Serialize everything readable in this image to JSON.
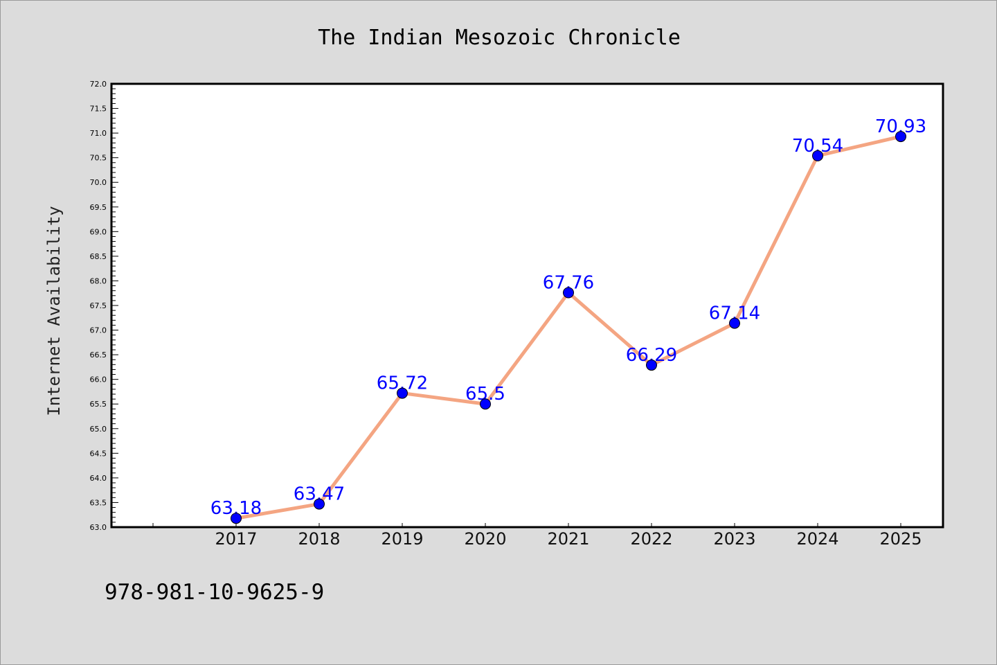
{
  "chart_data": {
    "type": "line",
    "title": "The Indian Mesozoic Chronicle",
    "xlabel": "",
    "ylabel": "Internet Availability",
    "categories": [
      "2017",
      "2018",
      "2019",
      "2020",
      "2021",
      "2022",
      "2023",
      "2024",
      "2025"
    ],
    "values": [
      63.18,
      63.47,
      65.72,
      65.5,
      67.76,
      66.29,
      67.14,
      70.54,
      70.93
    ],
    "value_labels": [
      "63.18",
      "63.47",
      "65.72",
      "65.5",
      "67.76",
      "66.29",
      "67.14",
      "70.54",
      "70.93"
    ],
    "ylim": [
      63.0,
      72.0
    ],
    "yticks": [
      "63.0",
      "63.5",
      "64.0",
      "64.5",
      "65.0",
      "65.5",
      "66.0",
      "66.5",
      "67.0",
      "67.5",
      "68.0",
      "68.5",
      "69.0",
      "69.5",
      "70.0",
      "70.5",
      "71.0",
      "71.5",
      "72.0"
    ],
    "grid": false,
    "colors": {
      "line": "#f4a582",
      "marker": "#0000ff",
      "label": "#0000ff",
      "plot_bg": "#ffffff",
      "page_bg": "#dcdcdc"
    }
  },
  "footer": {
    "isbn": "978-981-10-9625-9"
  }
}
